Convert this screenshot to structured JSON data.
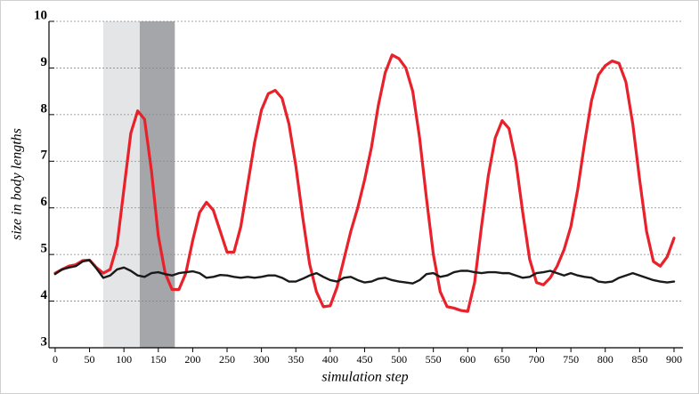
{
  "chart_data": {
    "type": "line",
    "x_label": "simulation step",
    "y_label": "size in body lengths",
    "xlim": [
      -9,
      913
    ],
    "ylim": [
      3,
      10
    ],
    "xticks": [
      0,
      50,
      100,
      150,
      200,
      250,
      300,
      350,
      400,
      450,
      500,
      550,
      600,
      650,
      700,
      750,
      800,
      850,
      900
    ],
    "yticks": [
      3,
      4,
      5,
      6,
      7,
      8,
      9,
      10
    ],
    "grid": true,
    "shaded_regions": [
      {
        "range": [
          70,
          123
        ],
        "color": "#e4e5e7"
      },
      {
        "range": [
          123,
          174
        ],
        "color": "#a5a6a9"
      }
    ],
    "x": [
      0,
      10,
      20,
      30,
      40,
      50,
      60,
      70,
      80,
      90,
      100,
      110,
      120,
      130,
      140,
      150,
      160,
      170,
      180,
      190,
      200,
      210,
      220,
      230,
      240,
      250,
      260,
      270,
      280,
      290,
      300,
      310,
      320,
      330,
      340,
      350,
      360,
      370,
      380,
      390,
      400,
      410,
      420,
      430,
      440,
      450,
      460,
      470,
      480,
      490,
      500,
      510,
      520,
      530,
      540,
      550,
      560,
      570,
      580,
      590,
      600,
      610,
      620,
      630,
      640,
      650,
      660,
      670,
      680,
      690,
      700,
      710,
      720,
      730,
      740,
      750,
      760,
      770,
      780,
      790,
      800,
      810,
      820,
      830,
      840,
      850,
      860,
      870,
      880,
      890,
      900
    ],
    "series": [
      {
        "color": "#e8212b",
        "values": [
          4.6,
          4.68,
          4.75,
          4.78,
          4.87,
          4.88,
          4.72,
          4.6,
          4.68,
          5.2,
          6.4,
          7.6,
          8.08,
          7.9,
          6.8,
          5.4,
          4.6,
          4.25,
          4.25,
          4.6,
          5.3,
          5.9,
          6.12,
          5.95,
          5.5,
          5.05,
          5.05,
          5.6,
          6.5,
          7.4,
          8.1,
          8.45,
          8.52,
          8.35,
          7.8,
          6.9,
          5.8,
          4.8,
          4.2,
          3.88,
          3.9,
          4.3,
          4.9,
          5.5,
          6.0,
          6.6,
          7.3,
          8.2,
          8.9,
          9.28,
          9.2,
          9.0,
          8.5,
          7.5,
          6.2,
          5.0,
          4.2,
          3.88,
          3.85,
          3.8,
          3.78,
          4.4,
          5.6,
          6.7,
          7.5,
          7.87,
          7.7,
          7.0,
          5.9,
          4.9,
          4.4,
          4.35,
          4.5,
          4.75,
          5.1,
          5.6,
          6.4,
          7.4,
          8.3,
          8.85,
          9.05,
          9.15,
          9.1,
          8.7,
          7.8,
          6.6,
          5.5,
          4.85,
          4.75,
          4.95,
          5.35
        ]
      },
      {
        "color": "#1a1a1a",
        "values": [
          4.58,
          4.68,
          4.72,
          4.75,
          4.85,
          4.88,
          4.7,
          4.5,
          4.55,
          4.68,
          4.72,
          4.65,
          4.55,
          4.52,
          4.6,
          4.62,
          4.58,
          4.55,
          4.6,
          4.62,
          4.64,
          4.6,
          4.5,
          4.52,
          4.56,
          4.55,
          4.52,
          4.5,
          4.52,
          4.5,
          4.52,
          4.55,
          4.55,
          4.5,
          4.42,
          4.42,
          4.48,
          4.55,
          4.6,
          4.52,
          4.45,
          4.42,
          4.5,
          4.52,
          4.45,
          4.4,
          4.42,
          4.48,
          4.5,
          4.45,
          4.42,
          4.4,
          4.38,
          4.45,
          4.58,
          4.6,
          4.52,
          4.55,
          4.62,
          4.65,
          4.65,
          4.62,
          4.6,
          4.62,
          4.62,
          4.6,
          4.6,
          4.55,
          4.5,
          4.52,
          4.6,
          4.62,
          4.65,
          4.6,
          4.55,
          4.6,
          4.55,
          4.52,
          4.5,
          4.42,
          4.4,
          4.42,
          4.5,
          4.55,
          4.6,
          4.55,
          4.5,
          4.45,
          4.42,
          4.4,
          4.42
        ]
      }
    ]
  }
}
